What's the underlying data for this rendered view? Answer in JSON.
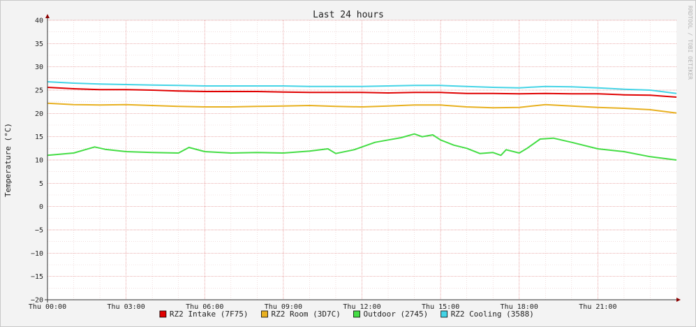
{
  "watermark": "RRDTOOL / TOBI OETIKER",
  "chart_data": {
    "type": "line",
    "title": "Last 24 hours",
    "ylabel": "Temperature (°C)",
    "xlabel": "",
    "ylim": [
      -20,
      40
    ],
    "xlim": [
      0,
      24
    ],
    "yticks": [
      -20,
      -15,
      -10,
      -5,
      0,
      5,
      10,
      15,
      20,
      25,
      30,
      35,
      40
    ],
    "xticks": [
      {
        "hour": 0,
        "label": "Thu 00:00"
      },
      {
        "hour": 3,
        "label": "Thu 03:00"
      },
      {
        "hour": 6,
        "label": "Thu 06:00"
      },
      {
        "hour": 9,
        "label": "Thu 09:00"
      },
      {
        "hour": 12,
        "label": "Thu 12:00"
      },
      {
        "hour": 15,
        "label": "Thu 15:00"
      },
      {
        "hour": 18,
        "label": "Thu 18:00"
      },
      {
        "hour": 21,
        "label": "Thu 21:00"
      }
    ],
    "grid": true,
    "legend_position": "bottom",
    "series": [
      {
        "name": "RZ2 Intake (7F75)",
        "color": "#e00000",
        "x": [
          0,
          1,
          2,
          3,
          4,
          5,
          6,
          7,
          8,
          9,
          10,
          11,
          12,
          13,
          14,
          15,
          16,
          17,
          18,
          19,
          20,
          21,
          22,
          23,
          24
        ],
        "values": [
          25.6,
          25.3,
          25.1,
          25.1,
          25.0,
          24.8,
          24.7,
          24.7,
          24.7,
          24.6,
          24.5,
          24.5,
          24.5,
          24.4,
          24.5,
          24.5,
          24.3,
          24.3,
          24.2,
          24.3,
          24.2,
          24.2,
          24.0,
          23.9,
          23.5
        ]
      },
      {
        "name": "RZ2 Room (3D7C)",
        "color": "#e8b020",
        "x": [
          0,
          1,
          2,
          3,
          4,
          5,
          6,
          7,
          8,
          9,
          10,
          11,
          12,
          13,
          14,
          15,
          16,
          17,
          18,
          19,
          20,
          21,
          22,
          23,
          24
        ],
        "values": [
          22.2,
          21.9,
          21.8,
          21.9,
          21.7,
          21.5,
          21.4,
          21.4,
          21.5,
          21.6,
          21.7,
          21.5,
          21.4,
          21.6,
          21.8,
          21.8,
          21.4,
          21.2,
          21.3,
          21.9,
          21.6,
          21.3,
          21.1,
          20.8,
          20.1
        ]
      },
      {
        "name": "Outdoor (2745)",
        "color": "#44dd44",
        "x": [
          0,
          1,
          1.8,
          2.2,
          3,
          4,
          5,
          5.4,
          6,
          7,
          8,
          9,
          10,
          10.7,
          11,
          11.7,
          12,
          12.5,
          13,
          13.5,
          14,
          14.3,
          14.7,
          15,
          15.5,
          16,
          16.5,
          17,
          17.3,
          17.5,
          18,
          18.3,
          18.8,
          19.3,
          20,
          21,
          22,
          23,
          24
        ],
        "values": [
          11.0,
          11.5,
          12.8,
          12.3,
          11.8,
          11.6,
          11.5,
          12.7,
          11.8,
          11.5,
          11.6,
          11.5,
          11.9,
          12.4,
          11.4,
          12.2,
          12.8,
          13.8,
          14.3,
          14.8,
          15.6,
          15.0,
          15.4,
          14.3,
          13.2,
          12.5,
          11.4,
          11.6,
          11.0,
          12.2,
          11.5,
          12.5,
          14.5,
          14.7,
          13.8,
          12.4,
          11.8,
          10.7,
          10.0
        ]
      },
      {
        "name": "RZ2 Cooling (3588)",
        "color": "#44d4e6",
        "x": [
          0,
          1,
          2,
          3,
          4,
          5,
          6,
          7,
          8,
          9,
          10,
          11,
          12,
          13,
          14,
          15,
          16,
          17,
          18,
          19,
          20,
          21,
          22,
          23,
          24
        ],
        "values": [
          26.8,
          26.5,
          26.3,
          26.2,
          26.1,
          26.0,
          25.9,
          25.9,
          25.9,
          25.9,
          25.8,
          25.8,
          25.8,
          25.9,
          26.0,
          26.0,
          25.8,
          25.6,
          25.5,
          25.8,
          25.7,
          25.5,
          25.2,
          25.0,
          24.3
        ]
      }
    ]
  }
}
